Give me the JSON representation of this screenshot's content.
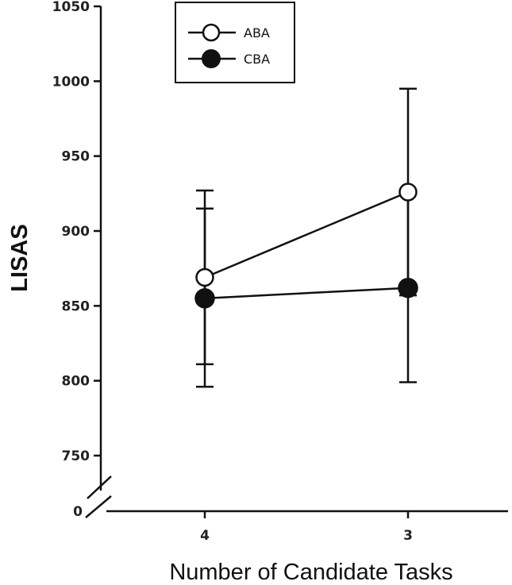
{
  "chart_data": {
    "type": "line",
    "title": "",
    "xlabel": "Number of Candidate Tasks",
    "ylabel": "LISAS",
    "categories": [
      "4",
      "3"
    ],
    "yticks": [
      750,
      800,
      850,
      900,
      950,
      1000,
      1050
    ],
    "ylim": [
      725,
      1050
    ],
    "axis_break_label": "0",
    "grid": false,
    "legend_position": "top-left",
    "series": [
      {
        "name": "ABA",
        "marker": "open-circle",
        "values": [
          869,
          926
        ],
        "error_low": [
          811,
          857
        ],
        "error_high": [
          927,
          995
        ]
      },
      {
        "name": "CBA",
        "marker": "filled-circle",
        "values": [
          855,
          862
        ],
        "error_low": [
          796,
          799
        ],
        "error_high": [
          915,
          926
        ]
      }
    ],
    "colors": {
      "line": "#111111",
      "open_fill": "#ffffff",
      "filled": "#111111"
    }
  }
}
